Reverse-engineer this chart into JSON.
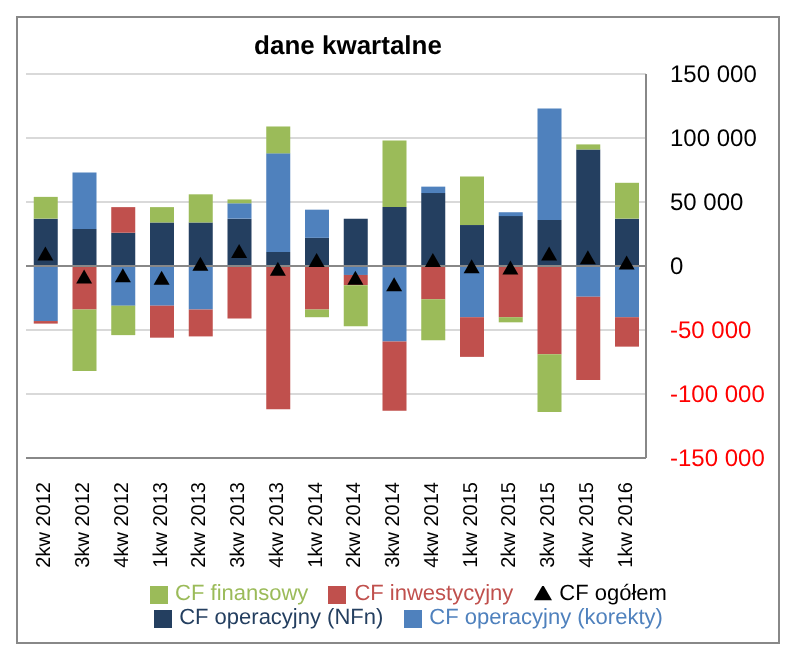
{
  "chart_data": {
    "type": "bar",
    "title": "dane kwartalne",
    "stacked": true,
    "categories": [
      "2kw 2012",
      "3kw 2012",
      "4kw 2012",
      "1kw 2013",
      "2kw 2013",
      "3kw 2013",
      "4kw 2013",
      "1kw 2014",
      "2kw 2014",
      "3kw 2014",
      "4kw 2014",
      "1kw 2015",
      "2kw 2015",
      "3kw 2015",
      "4kw 2015",
      "1kw 2016"
    ],
    "series": [
      {
        "name": "CF operacyjny (NFn)",
        "color": "#243f60",
        "values": [
          37000,
          29000,
          26000,
          34000,
          34000,
          37000,
          11000,
          22000,
          37000,
          46000,
          57000,
          32000,
          39000,
          36000,
          91000,
          37000
        ]
      },
      {
        "name": "CF operacyjny (korekty)",
        "color": "#4f81bd",
        "values": [
          -43000,
          44000,
          -31000,
          -31000,
          -34000,
          12000,
          77000,
          22000,
          -7000,
          -59000,
          5000,
          -40000,
          3000,
          87000,
          -24000,
          -40000
        ]
      },
      {
        "name": "CF inwestycyjny",
        "color": "#c0504d",
        "values": [
          -2000,
          -34000,
          20000,
          -25000,
          -21000,
          -41000,
          -112000,
          -34000,
          -8000,
          -54000,
          -26000,
          -31000,
          -40000,
          -69000,
          -65000,
          -23000
        ]
      },
      {
        "name": "CF finansowy",
        "color": "#9bbb59",
        "values": [
          17000,
          -48000,
          -23000,
          12000,
          22000,
          3000,
          21000,
          -6000,
          -32000,
          52000,
          -32000,
          38000,
          -4000,
          -45000,
          4000,
          28000
        ]
      },
      {
        "name": "CF ogółem",
        "type": "scatter",
        "marker": "triangle",
        "color": "#000000",
        "values": [
          9000,
          -9000,
          -8000,
          -10000,
          1000,
          11000,
          -3000,
          4000,
          -10000,
          -15000,
          4000,
          -1000,
          -2000,
          9000,
          6000,
          2000
        ]
      }
    ],
    "ylim": [
      -150000,
      150000
    ],
    "yticks": [
      {
        "value": -150000,
        "label": "-150 000"
      },
      {
        "value": -100000,
        "label": "-100 000"
      },
      {
        "value": -50000,
        "label": "-50 000"
      },
      0,
      {
        "value": 50000,
        "label": "50 000"
      },
      {
        "value": 100000,
        "label": "100 000"
      },
      {
        "value": 150000,
        "label": "150 000"
      }
    ],
    "grid": "y",
    "legend": "bottom"
  }
}
